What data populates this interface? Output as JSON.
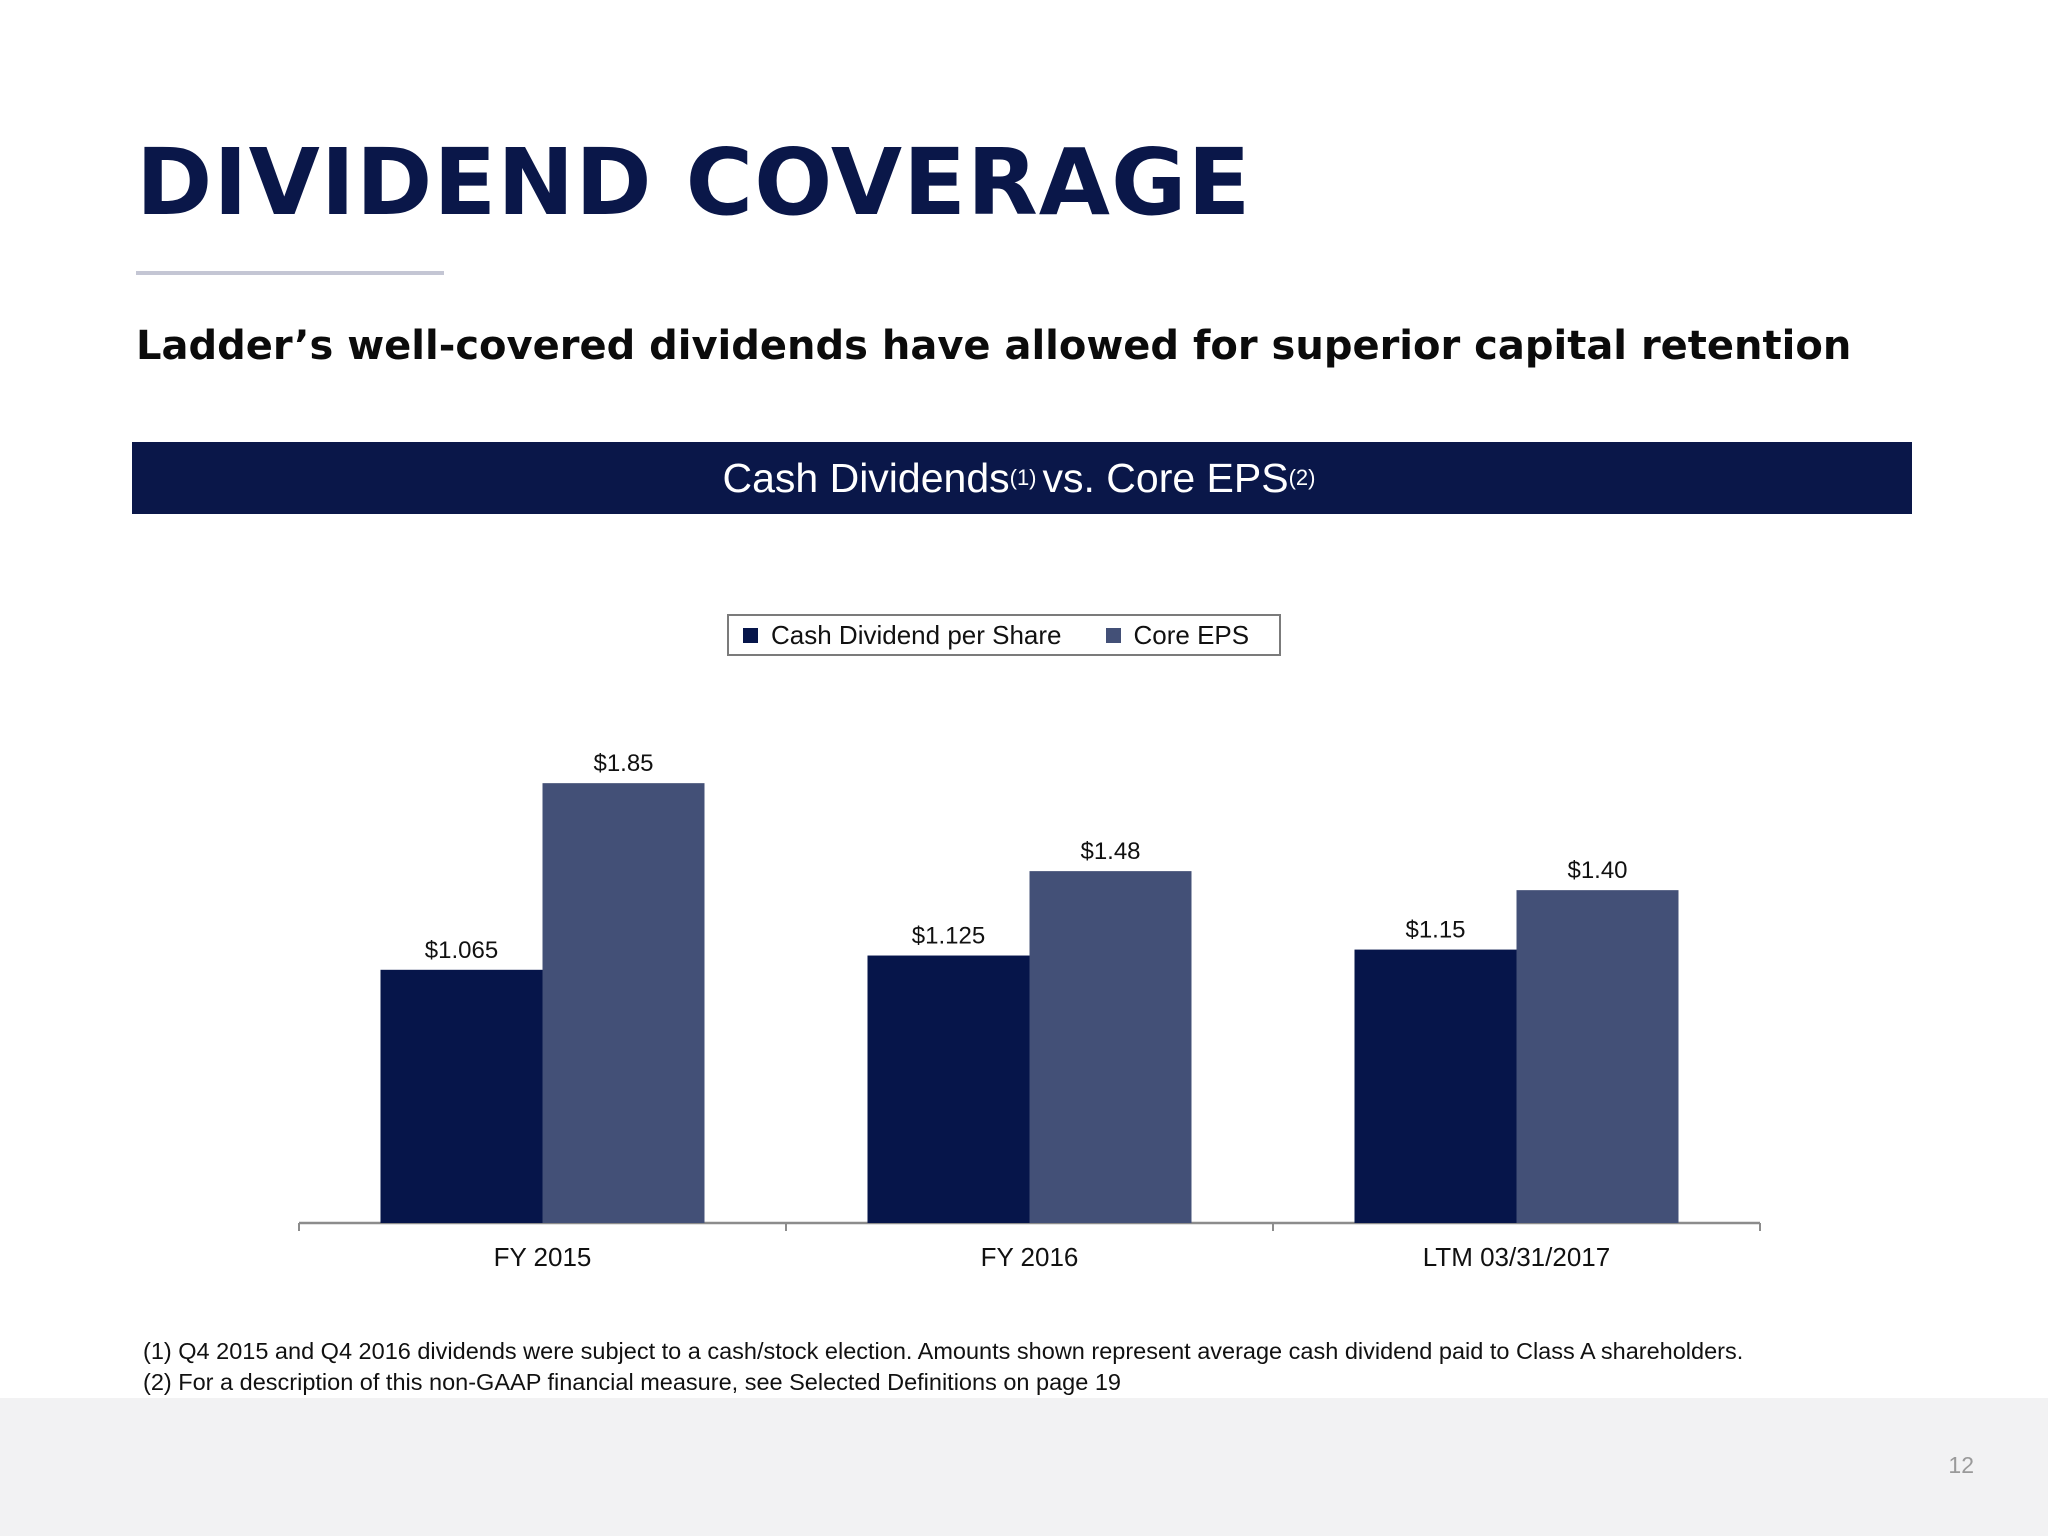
{
  "slide": {
    "title": "DIVIDEND COVERAGE",
    "subtitle": "Ladder’s well-covered dividends have allowed for superior capital retention",
    "banner": {
      "part1": "Cash Dividends",
      "sup1": "(1)",
      "part2": "vs. Core EPS",
      "sup2": "(2)"
    },
    "footnotes": [
      "(1) Q4 2015 and Q4 2016 dividends were subject to a cash/stock election.  Amounts shown represent average cash dividend paid to Class A shareholders.",
      "(2) For a description of this non-GAAP financial measure, see Selected Definitions on page 19"
    ],
    "page_number": "12"
  },
  "chart_data": {
    "type": "bar",
    "title": "",
    "xlabel": "",
    "ylabel": "",
    "categories": [
      "FY 2015",
      "FY 2016",
      "LTM 03/31/2017"
    ],
    "series": [
      {
        "name": "Cash Dividend per Share",
        "color": "#06154a",
        "values": [
          1.065,
          1.125,
          1.15
        ],
        "labels": [
          "$1.065",
          "$1.125",
          "$1.15"
        ]
      },
      {
        "name": "Core EPS",
        "color": "#435077",
        "values": [
          1.85,
          1.48,
          1.4
        ],
        "labels": [
          "$1.85",
          "$1.48",
          "$1.40"
        ]
      }
    ],
    "ylim": [
      0,
      2.0
    ],
    "grid": false,
    "y_axis_visible": false,
    "legend_position": "top-center",
    "axis_color": "#8c8c8c"
  }
}
